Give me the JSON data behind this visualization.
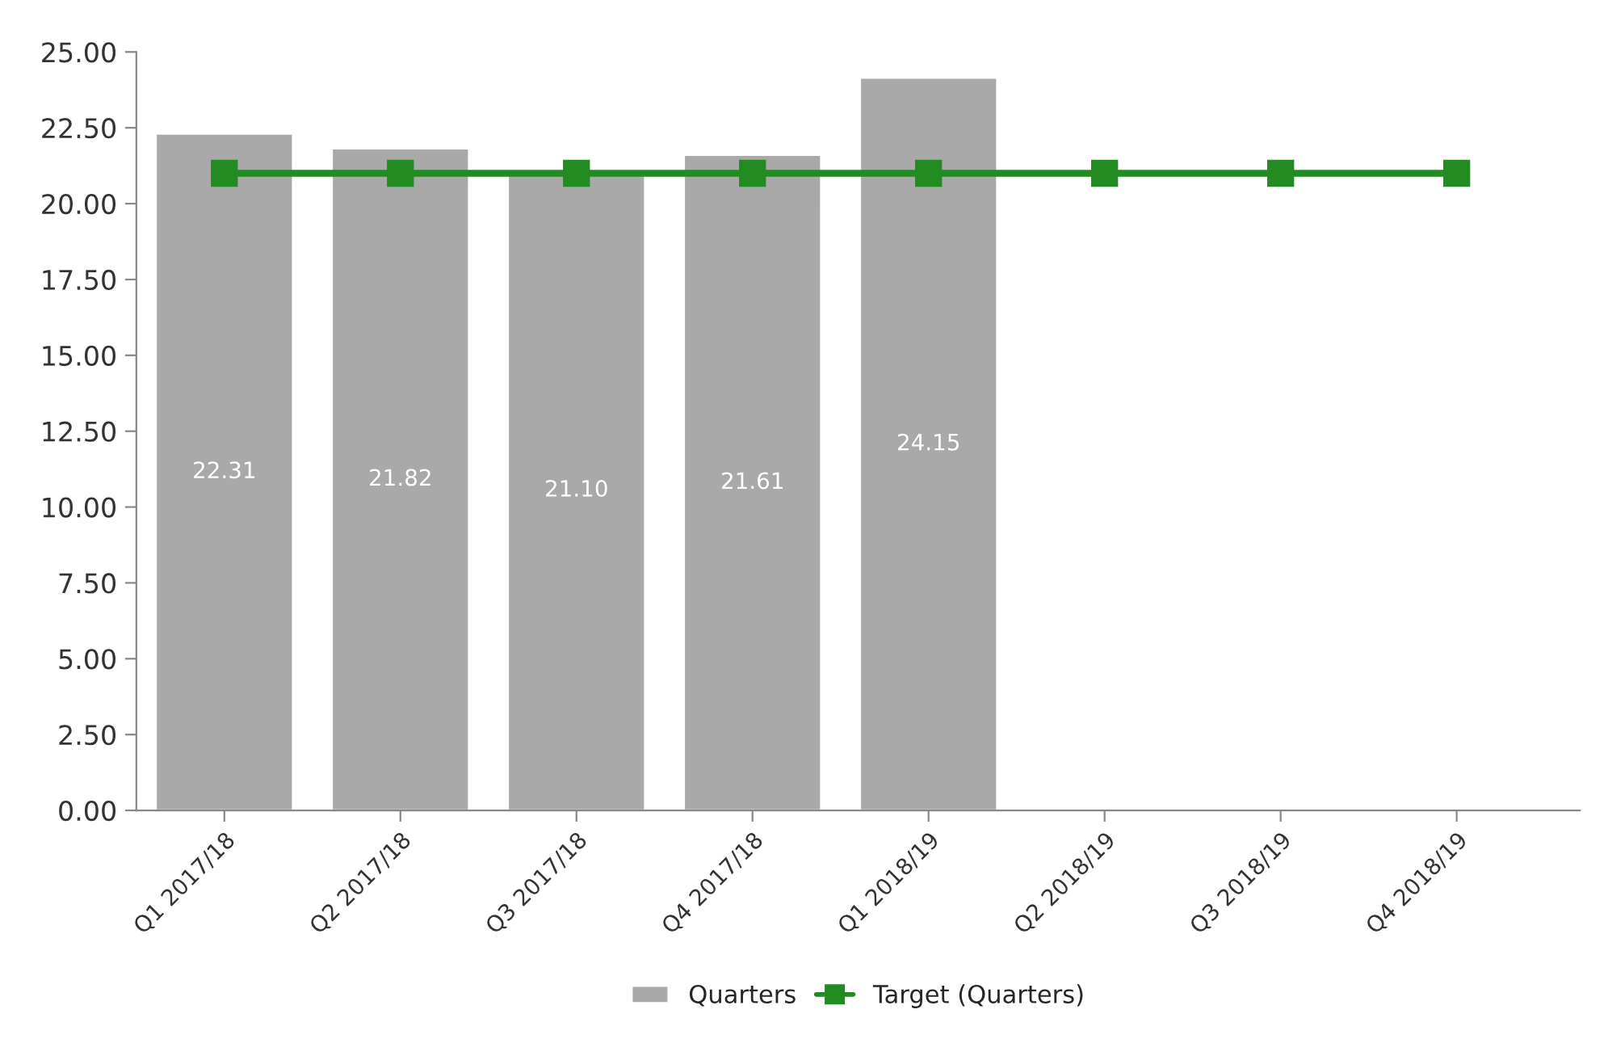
{
  "chart_data": {
    "type": "bar",
    "categories": [
      "Q1 2017/18",
      "Q2 2017/18",
      "Q3 2017/18",
      "Q4 2017/18",
      "Q1 2018/19",
      "Q2 2018/19",
      "Q3 2018/19",
      "Q4 2018/19"
    ],
    "series": [
      {
        "name": "Quarters",
        "color": "#a9a9a9",
        "values": [
          22.31,
          21.82,
          21.1,
          21.61,
          24.15,
          null,
          null,
          null
        ],
        "value_labels": [
          "22.31",
          "21.82",
          "21.10",
          "21.61",
          "24.15",
          null,
          null,
          null
        ]
      },
      {
        "name": "Target (Quarters)",
        "type": "line",
        "color": "#228b22",
        "marker": "square",
        "values": [
          21.0,
          21.0,
          21.0,
          21.0,
          21.0,
          21.0,
          21.0,
          21.0
        ]
      }
    ],
    "ylim": [
      0,
      25
    ],
    "yticks": [
      {
        "value": 0,
        "label": "0.00"
      },
      {
        "value": 2.5,
        "label": "2.50"
      },
      {
        "value": 5,
        "label": "5.00"
      },
      {
        "value": 7.5,
        "label": "7.50"
      },
      {
        "value": 10,
        "label": "10.00"
      },
      {
        "value": 12.5,
        "label": "12.50"
      },
      {
        "value": 15,
        "label": "15.00"
      },
      {
        "value": 17.5,
        "label": "17.50"
      },
      {
        "value": 20,
        "label": "20.00"
      },
      {
        "value": 22.5,
        "label": "22.50"
      },
      {
        "value": 25,
        "label": "25.00"
      }
    ],
    "grid": false,
    "legend": "bottom"
  }
}
